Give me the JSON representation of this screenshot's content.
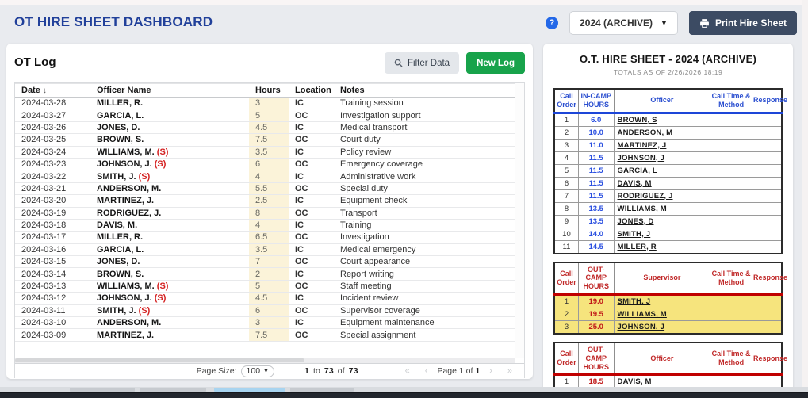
{
  "colors": {
    "brand_navy": "#21409a",
    "accent_green": "#18a34b",
    "accent_blue": "#2157d4",
    "accent_red": "#d42121",
    "hours_cell_bg": "#fbf3d9",
    "highlight_yellow": "#f6e47d",
    "print_button_bg": "#3c4b63",
    "hire_header_blue": "#2b4fd0",
    "hire_header_red": "#c02828",
    "help_icon_bg": "#2368e8"
  },
  "icons": {
    "help": "?",
    "caret_down": "▾",
    "sort_desc": "↓",
    "first_page": "«",
    "prev_page": "‹",
    "next_page": "›",
    "last_page": "»"
  },
  "header": {
    "title": "OT HIRE SHEET DASHBOARD",
    "year_select_value": "2024 (ARCHIVE)",
    "print_button_label": "Print Hire Sheet"
  },
  "ot_log": {
    "panel_title": "OT Log",
    "filter_button_label": "Filter Data",
    "new_log_button_label": "New Log",
    "columns": {
      "date": "Date",
      "officer": "Officer Name",
      "hours": "Hours",
      "location": "Location",
      "notes": "Notes"
    },
    "rows": [
      {
        "date": "2024-03-28",
        "officer": "MILLER, R.",
        "tag": "",
        "hours": "3",
        "location": "IC",
        "notes": "Training session"
      },
      {
        "date": "2024-03-27",
        "officer": "GARCIA, L.",
        "tag": "",
        "hours": "5",
        "location": "OC",
        "notes": "Investigation support"
      },
      {
        "date": "2024-03-26",
        "officer": "JONES, D.",
        "tag": "",
        "hours": "4.5",
        "location": "IC",
        "notes": "Medical transport"
      },
      {
        "date": "2024-03-25",
        "officer": "BROWN, S.",
        "tag": "",
        "hours": "7.5",
        "location": "OC",
        "notes": "Court duty"
      },
      {
        "date": "2024-03-24",
        "officer": "WILLIAMS, M.",
        "tag": "(S)",
        "hours": "3.5",
        "location": "IC",
        "notes": "Policy review"
      },
      {
        "date": "2024-03-23",
        "officer": "JOHNSON, J.",
        "tag": "(S)",
        "hours": "6",
        "location": "OC",
        "notes": "Emergency coverage"
      },
      {
        "date": "2024-03-22",
        "officer": "SMITH, J.",
        "tag": "(S)",
        "hours": "4",
        "location": "IC",
        "notes": "Administrative work"
      },
      {
        "date": "2024-03-21",
        "officer": "ANDERSON, M.",
        "tag": "",
        "hours": "5.5",
        "location": "OC",
        "notes": "Special duty"
      },
      {
        "date": "2024-03-20",
        "officer": "MARTINEZ, J.",
        "tag": "",
        "hours": "2.5",
        "location": "IC",
        "notes": "Equipment check"
      },
      {
        "date": "2024-03-19",
        "officer": "RODRIGUEZ, J.",
        "tag": "",
        "hours": "8",
        "location": "OC",
        "notes": "Transport"
      },
      {
        "date": "2024-03-18",
        "officer": "DAVIS, M.",
        "tag": "",
        "hours": "4",
        "location": "IC",
        "notes": "Training"
      },
      {
        "date": "2024-03-17",
        "officer": "MILLER, R.",
        "tag": "",
        "hours": "6.5",
        "location": "OC",
        "notes": "Investigation"
      },
      {
        "date": "2024-03-16",
        "officer": "GARCIA, L.",
        "tag": "",
        "hours": "3.5",
        "location": "IC",
        "notes": "Medical emergency"
      },
      {
        "date": "2024-03-15",
        "officer": "JONES, D.",
        "tag": "",
        "hours": "7",
        "location": "OC",
        "notes": "Court appearance"
      },
      {
        "date": "2024-03-14",
        "officer": "BROWN, S.",
        "tag": "",
        "hours": "2",
        "location": "IC",
        "notes": "Report writing"
      },
      {
        "date": "2024-03-13",
        "officer": "WILLIAMS, M.",
        "tag": "(S)",
        "hours": "5",
        "location": "OC",
        "notes": "Staff meeting"
      },
      {
        "date": "2024-03-12",
        "officer": "JOHNSON, J.",
        "tag": "(S)",
        "hours": "4.5",
        "location": "IC",
        "notes": "Incident review"
      },
      {
        "date": "2024-03-11",
        "officer": "SMITH, J.",
        "tag": "(S)",
        "hours": "6",
        "location": "OC",
        "notes": "Supervisor coverage"
      },
      {
        "date": "2024-03-10",
        "officer": "ANDERSON, M.",
        "tag": "",
        "hours": "3",
        "location": "IC",
        "notes": "Equipment maintenance"
      },
      {
        "date": "2024-03-09",
        "officer": "MARTINEZ, J.",
        "tag": "",
        "hours": "7.5",
        "location": "OC",
        "notes": "Special assignment"
      }
    ],
    "footer": {
      "page_size_label": "Page Size:",
      "page_size_value": "100",
      "range": {
        "start": "1",
        "to": "to",
        "end": "73",
        "of": "of",
        "total": "73"
      },
      "pagination": {
        "page_label": "Page",
        "current": "1",
        "of": "of",
        "total": "1"
      }
    }
  },
  "hire_sheet": {
    "title": "O.T. HIRE SHEET - 2024 (ARCHIVE)",
    "subtitle": "TOTALS AS OF 2/26/2026 18:19",
    "tables": [
      {
        "theme": "blue",
        "highlight": false,
        "columns": [
          "Call Order",
          "IN-CAMP HOURS",
          "Officer",
          "Call Time & Method",
          "Response"
        ],
        "rows": [
          [
            "1",
            "6.0",
            "BROWN, S"
          ],
          [
            "2",
            "10.0",
            "ANDERSON, M"
          ],
          [
            "3",
            "11.0",
            "MARTINEZ, J"
          ],
          [
            "4",
            "11.5",
            "JOHNSON, J"
          ],
          [
            "5",
            "11.5",
            "GARCIA, L"
          ],
          [
            "6",
            "11.5",
            "DAVIS, M"
          ],
          [
            "7",
            "11.5",
            "RODRIGUEZ, J"
          ],
          [
            "8",
            "13.5",
            "WILLIAMS, M"
          ],
          [
            "9",
            "13.5",
            "JONES, D"
          ],
          [
            "10",
            "14.0",
            "SMITH, J"
          ],
          [
            "11",
            "14.5",
            "MILLER, R"
          ]
        ]
      },
      {
        "theme": "red",
        "highlight": true,
        "columns": [
          "Call Order",
          "OUT-CAMP HOURS",
          "Supervisor",
          "Call Time & Method",
          "Response"
        ],
        "rows": [
          [
            "1",
            "19.0",
            "SMITH, J"
          ],
          [
            "2",
            "19.5",
            "WILLIAMS, M"
          ],
          [
            "3",
            "25.0",
            "JOHNSON, J"
          ]
        ]
      },
      {
        "theme": "red",
        "highlight": false,
        "columns": [
          "Call Order",
          "OUT-CAMP HOURS",
          "Officer",
          "Call Time & Method",
          "Response"
        ],
        "rows": [
          [
            "1",
            "18.5",
            "DAVIS, M"
          ]
        ]
      }
    ]
  }
}
